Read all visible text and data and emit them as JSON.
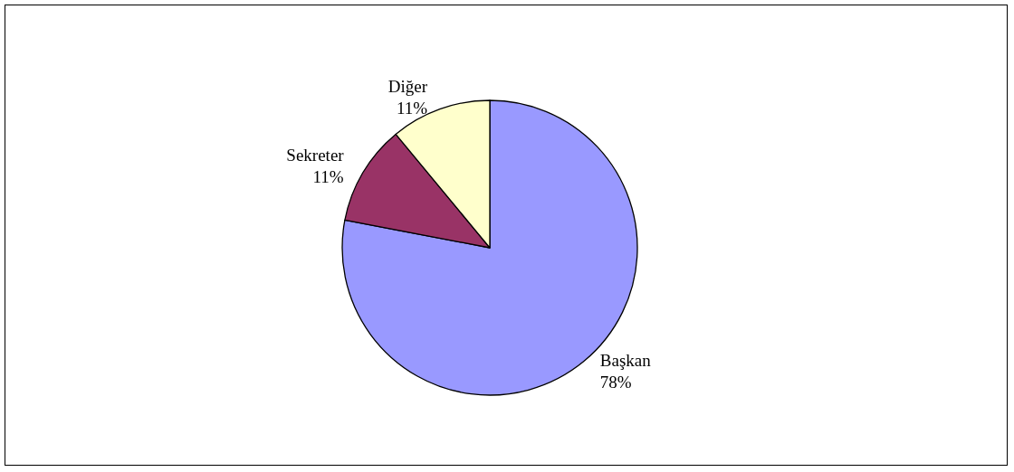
{
  "chart_data": {
    "type": "pie",
    "categories": [
      "Başkan",
      "Sekreter",
      "Diğer"
    ],
    "values": [
      78,
      11,
      11
    ],
    "value_labels": [
      "78%",
      "11%",
      "11%"
    ],
    "colors": [
      "#9999ff",
      "#993366",
      "#ffffcc"
    ],
    "legend": false
  }
}
